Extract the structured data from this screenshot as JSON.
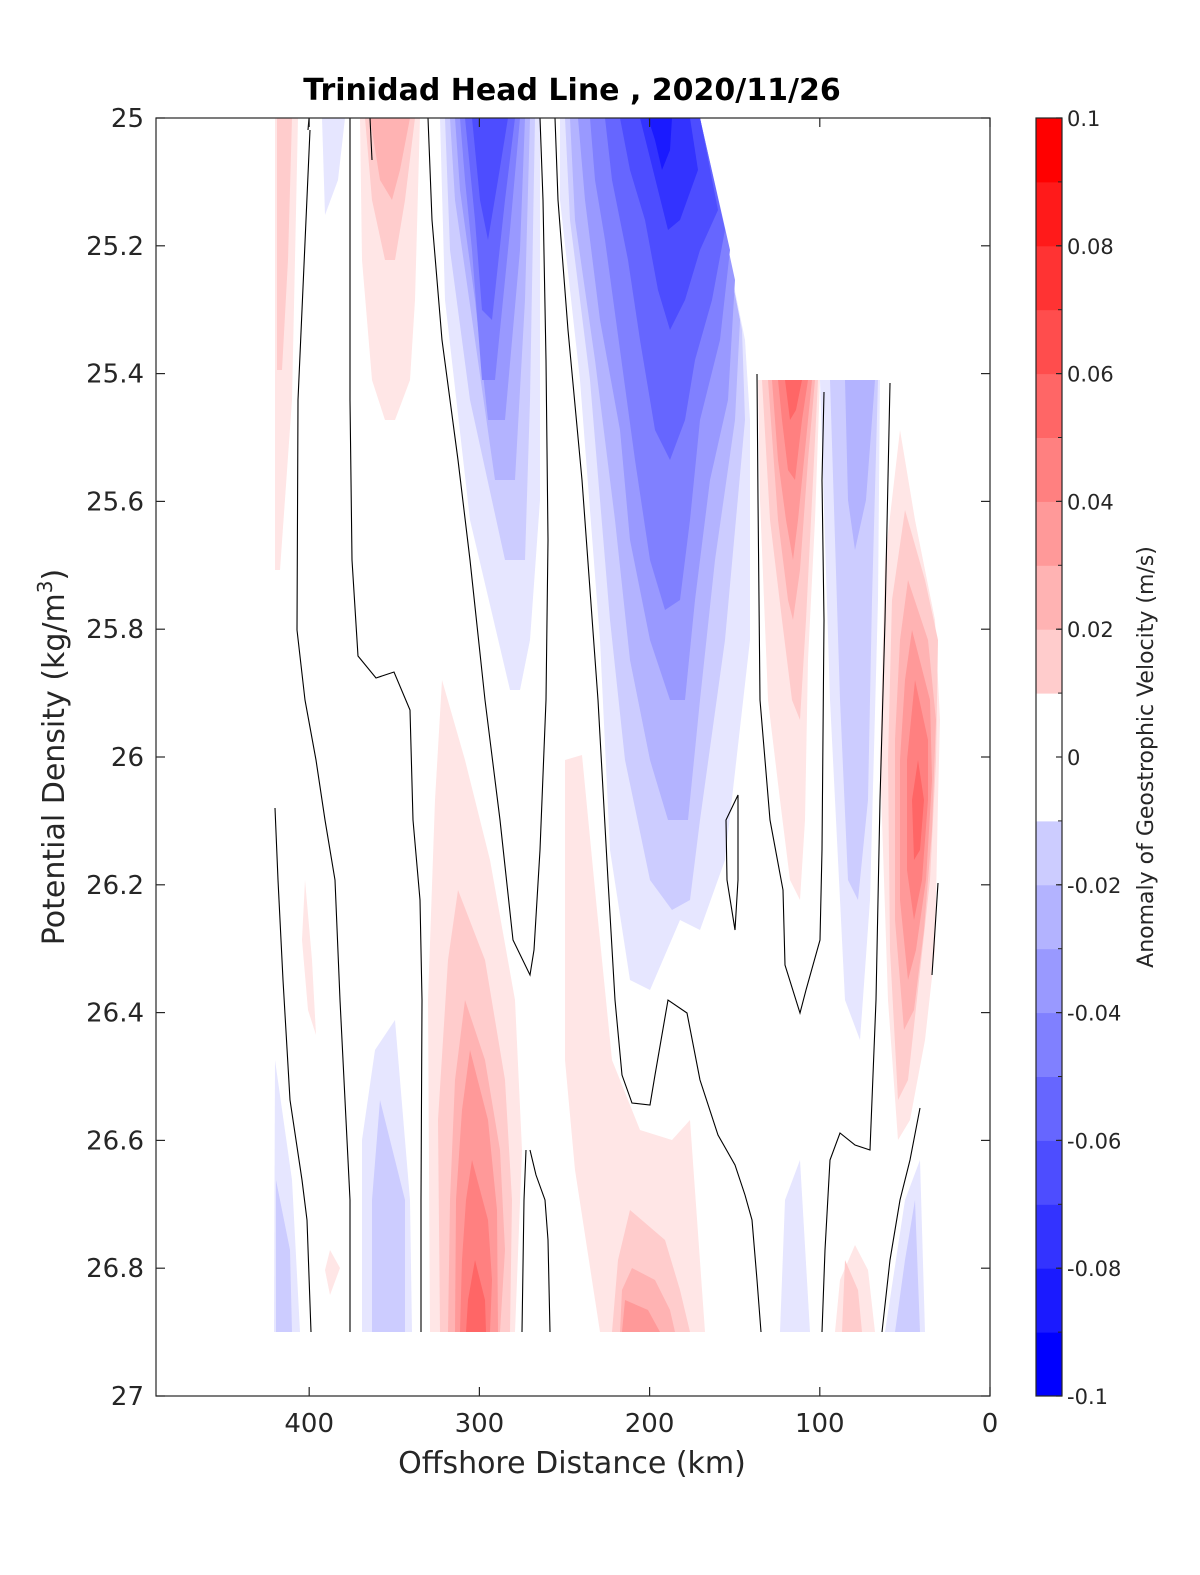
{
  "chart_data": {
    "type": "contourf",
    "title": "Trinidad Head Line , 2020/11/26",
    "xlabel": "Offshore Distance (km)",
    "ylabel_main": "Potential Density (kg/m",
    "ylabel_sup": "3",
    "ylabel_close": ")",
    "x_reversed": true,
    "y_reversed": true,
    "xlim": [
      0,
      490
    ],
    "ylim": [
      25,
      27
    ],
    "xticks": [
      "400",
      "300",
      "200",
      "100",
      "0"
    ],
    "xtick_values": [
      400,
      300,
      200,
      100,
      0
    ],
    "yticks": [
      "25",
      "25.2",
      "25.4",
      "25.6",
      "25.8",
      "26",
      "26.2",
      "26.4",
      "26.6",
      "26.8",
      "27"
    ],
    "ytick_values": [
      25,
      25.2,
      25.4,
      25.6,
      25.8,
      26,
      26.2,
      26.4,
      26.6,
      26.8,
      27
    ],
    "colorbar": {
      "label": "Anomaly of Geostrophic Velocity (m/s)",
      "limits": [
        -0.1,
        0.1
      ],
      "ticks": [
        "0.1",
        "0.08",
        "0.06",
        "0.04",
        "0.02",
        "0",
        "-0.02",
        "-0.04",
        "-0.06",
        "-0.08",
        "-0.1"
      ],
      "tick_values": [
        0.1,
        0.08,
        0.06,
        0.04,
        0.02,
        0,
        -0.02,
        -0.04,
        -0.06,
        -0.08,
        -0.1
      ],
      "levels": [
        -0.1,
        -0.09,
        -0.08,
        -0.07,
        -0.06,
        -0.05,
        -0.04,
        -0.03,
        -0.02,
        -0.01,
        0.01,
        0.02,
        0.03,
        0.04,
        0.05,
        0.06,
        0.07,
        0.08,
        0.09,
        0.1
      ],
      "colors": [
        "#0000ff",
        "#1a1aff",
        "#3333ff",
        "#4d4dff",
        "#6666ff",
        "#8080ff",
        "#9999ff",
        "#b3b3ff",
        "#ccccff",
        "#e6e6ff",
        "#ffffff",
        "#ffe6e6",
        "#ffcccc",
        "#ffb3b3",
        "#ff9999",
        "#ff8080",
        "#ff6666",
        "#ff4d4d",
        "#ff3333",
        "#ff1a1a",
        "#ff0000"
      ]
    },
    "contour_line": "0",
    "features": [
      {
        "name": "negative-core-offshore",
        "x_center": 295,
        "density_top": 25.0,
        "density_bottom": 25.9,
        "min_value": -0.06
      },
      {
        "name": "negative-core-midline",
        "x_center": 195,
        "density_top": 25.0,
        "density_bottom": 26.3,
        "min_value": -0.08
      },
      {
        "name": "positive-core-deep",
        "x_center": 300,
        "density_top": 25.9,
        "density_bottom": 26.9,
        "max_value": 0.06
      },
      {
        "name": "positive-core-shelf-break",
        "x_center": 115,
        "density_top": 25.4,
        "density_bottom": 26.2,
        "max_value": 0.06
      },
      {
        "name": "positive-core-nearshore",
        "x_center": 45,
        "density_top": 25.5,
        "density_bottom": 26.6,
        "max_value": 0.06
      }
    ]
  }
}
